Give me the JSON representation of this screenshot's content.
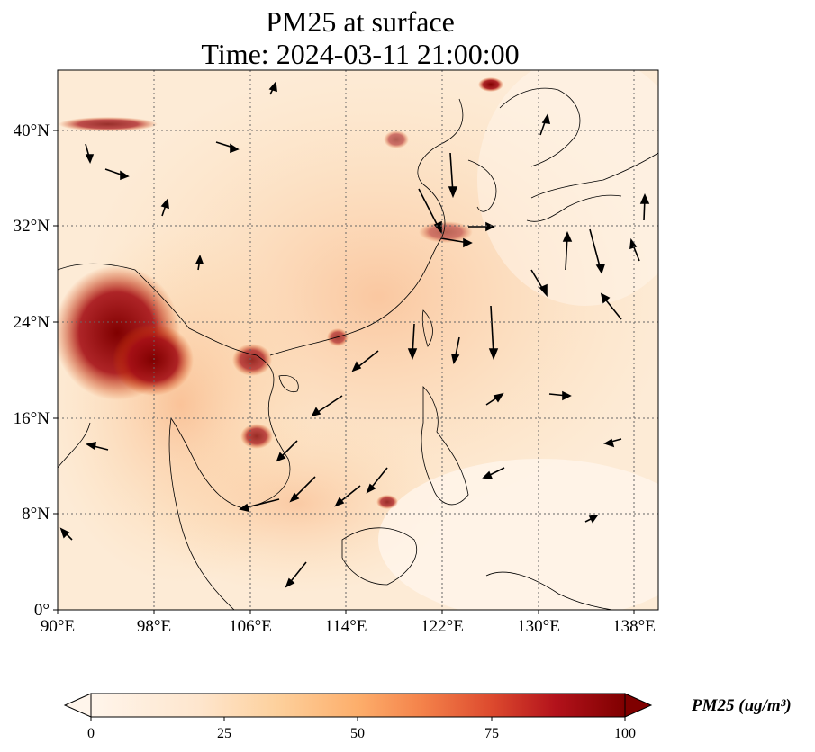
{
  "title_line1": "PM25 at surface",
  "title_line2": "Time: 2024-03-11 21:00:00",
  "map": {
    "lon_range": [
      90,
      140
    ],
    "lat_range": [
      0,
      45
    ],
    "lon_ticks": [
      {
        "value": 90,
        "label": "90°E"
      },
      {
        "value": 98,
        "label": "98°E"
      },
      {
        "value": 106,
        "label": "106°E"
      },
      {
        "value": 114,
        "label": "114°E"
      },
      {
        "value": 122,
        "label": "122°E"
      },
      {
        "value": 130,
        "label": "130°E"
      },
      {
        "value": 138,
        "label": "138°E"
      }
    ],
    "lat_ticks": [
      {
        "value": 0,
        "label": "0°"
      },
      {
        "value": 8,
        "label": "8°N"
      },
      {
        "value": 16,
        "label": "16°N"
      },
      {
        "value": 24,
        "label": "24°N"
      },
      {
        "value": 32,
        "label": "32°N"
      },
      {
        "value": 40,
        "label": "40°N"
      }
    ],
    "gridlines": "dotted",
    "variable": "PM25",
    "vectors": "wind"
  },
  "colorbar": {
    "label": "PM25 (ug/m³)",
    "min": 0,
    "max": 100,
    "ticks": [
      "0",
      "25",
      "50",
      "75",
      "100"
    ],
    "colors": [
      "#fff5eb",
      "#fdd49e",
      "#fdae6b",
      "#f16913",
      "#d94801",
      "#a50f15",
      "#7f0000"
    ],
    "extend": "both"
  }
}
